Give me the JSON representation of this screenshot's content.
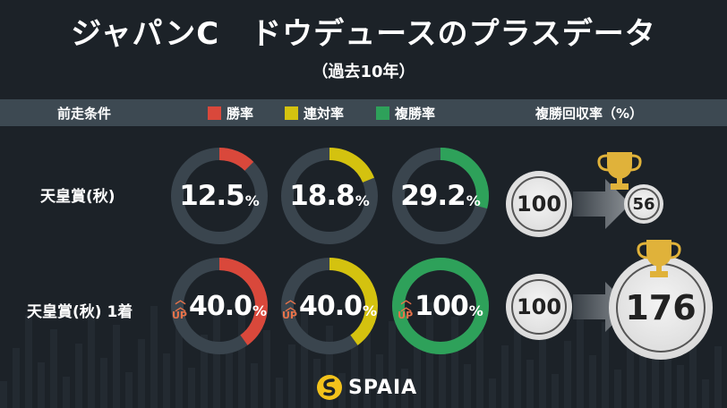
{
  "title": "ジャパンC　ドウデュースのプラスデータ",
  "subtitle": "（過去10年）",
  "headers": {
    "condition": "前走条件",
    "win_rate": "勝率",
    "quinella_rate": "連対率",
    "place_rate": "複勝率",
    "place_return": "複勝回収率（%）"
  },
  "colors": {
    "win": "#d9483b",
    "quinella": "#d4c20f",
    "place": "#2ea15a",
    "ring_track": "#3a454e",
    "up": "#e8734a",
    "trophy": "#e0b23a"
  },
  "rows": [
    {
      "label": "天皇賞(秋)",
      "win": {
        "value": 12.5,
        "text": "12.5"
      },
      "quinella": {
        "value": 18.8,
        "text": "18.8"
      },
      "place": {
        "value": 29.2,
        "text": "29.2"
      },
      "return_base": "100",
      "return_value": "56"
    },
    {
      "label": "天皇賞(秋) 1着",
      "win": {
        "value": 40.0,
        "text": "40.0"
      },
      "quinella": {
        "value": 40.0,
        "text": "40.0"
      },
      "place": {
        "value": 100,
        "text": "100"
      },
      "return_base": "100",
      "return_value": "176"
    }
  ],
  "unit": "%",
  "up_label": "UP",
  "brand": "SPAIA"
}
